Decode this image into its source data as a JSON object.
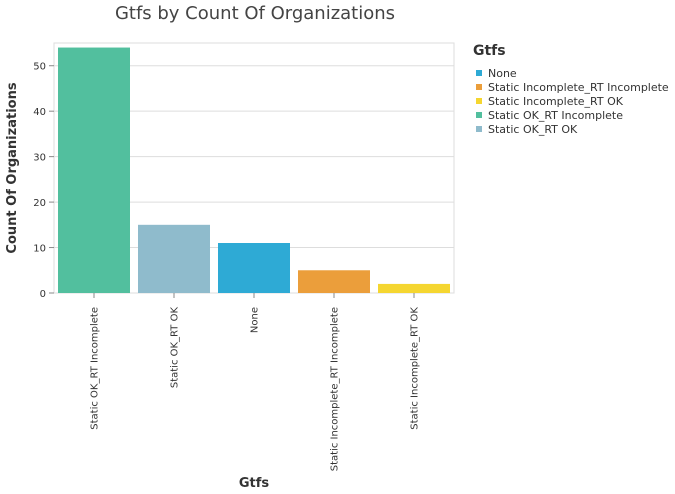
{
  "chart_data": {
    "type": "bar",
    "title": "Gtfs by Count Of Organizations",
    "xlabel": "Gtfs",
    "ylabel": "Count Of Organizations",
    "categories": [
      "Static OK_RT Incomplete",
      "Static OK_RT OK",
      "None",
      "Static Incomplete_RT Incomplete",
      "Static Incomplete_RT OK"
    ],
    "values": [
      54,
      15,
      11,
      5,
      2
    ],
    "bar_colors": [
      "#52bf9e",
      "#8fbbcc",
      "#2eaad5",
      "#eb9e3b",
      "#f5d630"
    ],
    "ylim": [
      0,
      55
    ],
    "yticks": [
      0,
      10,
      20,
      30,
      40,
      50
    ],
    "grid": true,
    "legend": {
      "title": "Gtfs",
      "position": "right",
      "items": [
        {
          "label": "None",
          "color": "#2eaad5"
        },
        {
          "label": "Static Incomplete_RT Incomplete",
          "color": "#eb9e3b"
        },
        {
          "label": "Static Incomplete_RT OK",
          "color": "#f5d630"
        },
        {
          "label": "Static OK_RT Incomplete",
          "color": "#52bf9e"
        },
        {
          "label": "Static OK_RT OK",
          "color": "#8fbbcc"
        }
      ]
    }
  }
}
